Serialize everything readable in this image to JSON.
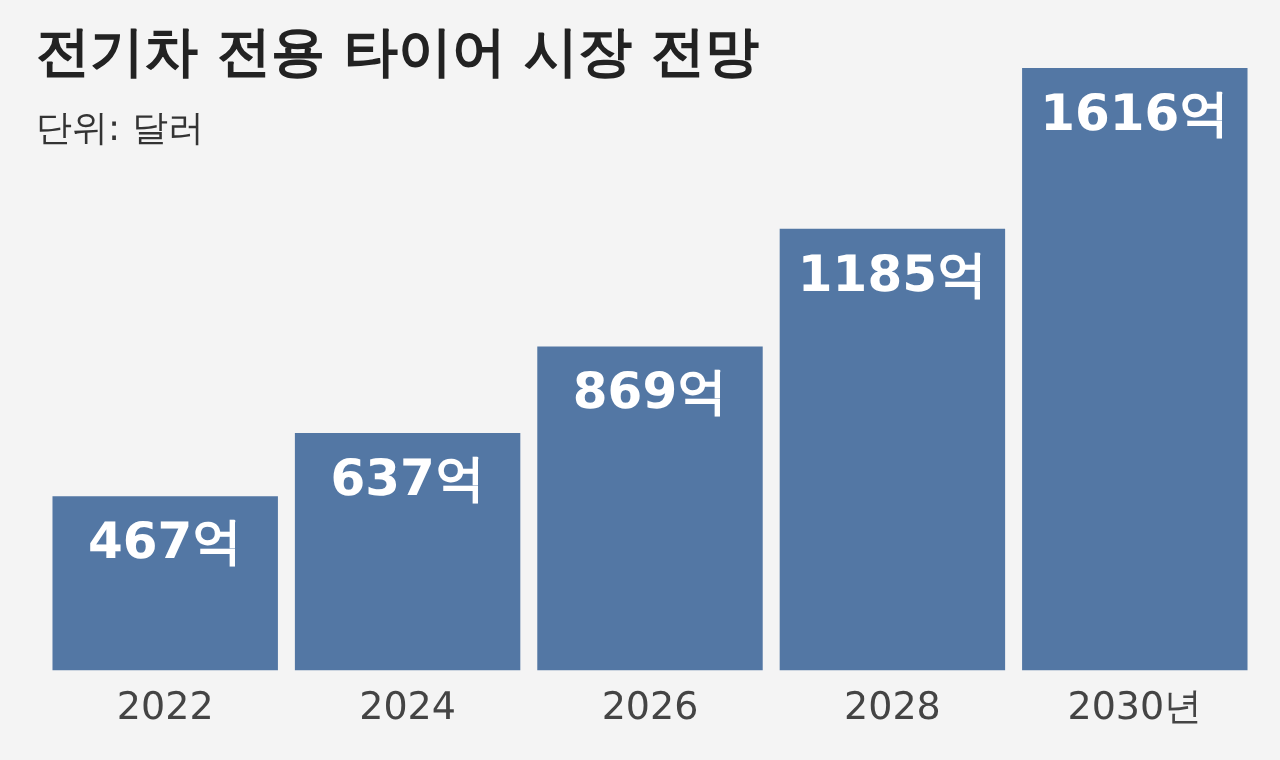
{
  "chart_data": {
    "type": "bar",
    "title": "전기차 전용 타이어 시장 전망",
    "subtitle": "단위: 달러",
    "categories": [
      "2022",
      "2024",
      "2026",
      "2028",
      "2030년"
    ],
    "values": [
      467,
      637,
      869,
      1185,
      1616
    ],
    "value_labels": [
      "467억",
      "637억",
      "869억",
      "1185억",
      "1616억"
    ],
    "color": "#5377a4",
    "tick_labels": "x",
    "grid": false,
    "legend": false
  }
}
